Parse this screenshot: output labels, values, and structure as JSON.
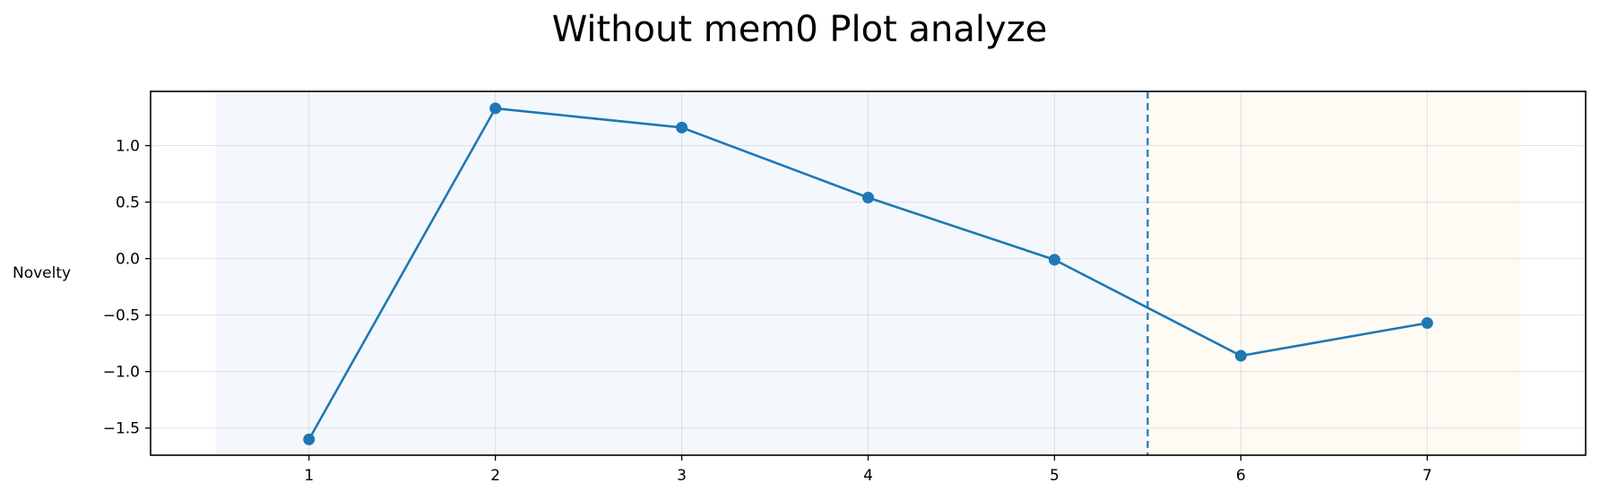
{
  "chart_data": {
    "type": "line",
    "title": "Without mem0 Plot analyze",
    "xlabel": "",
    "ylabel": "Novelty",
    "x": [
      1,
      2,
      3,
      4,
      5,
      6,
      7
    ],
    "x_tick_labels": [
      "1",
      "2",
      "3",
      "4",
      "5",
      "6",
      "7"
    ],
    "y_tick_labels": [
      "1.0",
      "0.5",
      "0.0",
      "−0.5",
      "−1.0",
      "−1.5"
    ],
    "y_ticks": [
      1.0,
      0.5,
      0.0,
      -0.5,
      -1.0,
      -1.5
    ],
    "series": [
      {
        "values": [
          -1.6,
          1.33,
          1.16,
          0.54,
          -0.01,
          -0.86,
          -0.57
        ],
        "color": "#1f77b4",
        "marker": "circle"
      }
    ],
    "xlim": [
      0.15,
      7.85
    ],
    "ylim": [
      -1.74,
      1.48
    ],
    "grid": true,
    "shaded_regions": [
      {
        "x_start": 0.5,
        "x_end": 5.5,
        "color": "#dce9f7"
      },
      {
        "x_start": 5.5,
        "x_end": 7.5,
        "color": "#fdf0e0"
      }
    ],
    "vertical_line": {
      "x": 5.5,
      "style": "dashed",
      "color": "#1f77b4"
    }
  }
}
